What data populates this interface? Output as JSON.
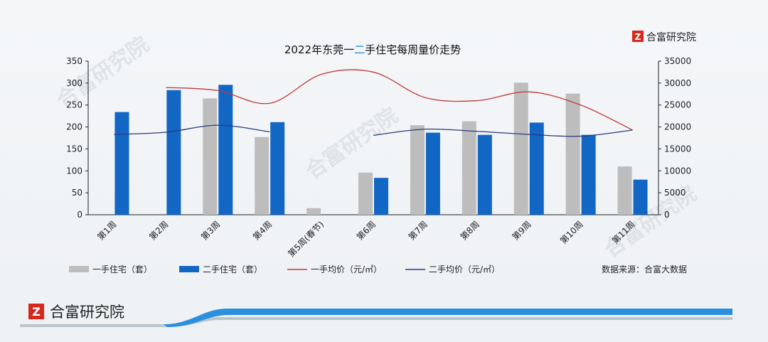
{
  "brand": {
    "name": "合富研究院",
    "logo_glyph": "Z",
    "logo_color": "#d7281e"
  },
  "watermark_text": "合富研究院",
  "source_note": "数据来源：合富大数据",
  "colors": {
    "bar_new": "#bdbdbd",
    "bar_second": "#1266c4",
    "line_new": "#c0393b",
    "line_second": "#2a3b7c",
    "band_blue": "#2b8fe0",
    "band_gray": "#b9c4cc"
  },
  "chart_data": {
    "type": "bar",
    "title_parts": [
      "2022年东莞一",
      "二",
      "手住宅每周量价走势"
    ],
    "categories": [
      "第1周",
      "第2周",
      "第3周",
      "第4周",
      "第5周(春节)",
      "第6周",
      "第7周",
      "第8周",
      "第9周",
      "第10周",
      "第11周"
    ],
    "y_left": {
      "min": 0,
      "max": 350,
      "ticks": [
        0,
        50,
        100,
        150,
        200,
        250,
        300,
        350
      ]
    },
    "y_right": {
      "min": 0,
      "max": 35000,
      "ticks": [
        0,
        5000,
        10000,
        15000,
        20000,
        25000,
        30000,
        35000
      ]
    },
    "series": [
      {
        "name": "一手住宅（套）",
        "kind": "bar",
        "axis": "left",
        "values": [
          null,
          null,
          265,
          177,
          15,
          96,
          204,
          213,
          301,
          276,
          110
        ]
      },
      {
        "name": "二手住宅（套）",
        "kind": "bar",
        "axis": "left",
        "values": [
          234,
          284,
          296,
          211,
          null,
          84,
          187,
          182,
          210,
          182,
          80
        ]
      },
      {
        "name": "一手均价（元/㎡）",
        "kind": "line",
        "axis": "right",
        "values": [
          null,
          29000,
          28300,
          25400,
          32000,
          32500,
          26700,
          26000,
          28000,
          25000,
          19300
        ]
      },
      {
        "name": "二手均价（元/㎡）",
        "kind": "line",
        "axis": "right",
        "values": [
          18300,
          18800,
          20400,
          18900,
          null,
          18100,
          19500,
          19000,
          18300,
          17900,
          19300
        ]
      }
    ],
    "legend_position": "bottom",
    "grid": false
  }
}
